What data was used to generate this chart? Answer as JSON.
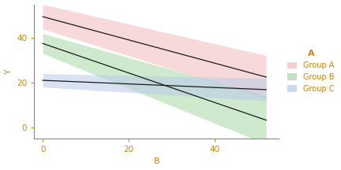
{
  "title": "",
  "xlabel": "B",
  "ylabel": "Y",
  "legend_title": "A",
  "legend_labels": [
    "Group A",
    "Group B",
    "Group C"
  ],
  "x_range": [
    -2,
    55
  ],
  "y_range": [
    -5,
    55
  ],
  "xticks": [
    0,
    20,
    40
  ],
  "yticks": [
    0,
    20,
    40
  ],
  "background_color": "#ffffff",
  "panel_background": "#ffffff",
  "axis_color": "#888888",
  "groups": {
    "Group A": {
      "line_color": "#1a1a1a",
      "fill_color": "#F4BBBB",
      "fill_alpha": 0.55,
      "intercept": 49.5,
      "slope": -0.52,
      "ci_upper_intercept": 55,
      "ci_upper_slope": -0.44,
      "ci_lower_intercept": 44,
      "ci_lower_slope": -0.6
    },
    "Group B": {
      "line_color": "#1a1a1a",
      "fill_color": "#A8D8A8",
      "fill_alpha": 0.55,
      "intercept": 37.5,
      "slope": -0.66,
      "ci_upper_intercept": 42,
      "ci_upper_slope": -0.54,
      "ci_lower_intercept": 33,
      "ci_lower_slope": -0.78
    },
    "Group C": {
      "line_color": "#1a1a1a",
      "fill_color": "#B8CBE8",
      "fill_alpha": 0.55,
      "intercept": 21,
      "slope": -0.08,
      "ci_upper_intercept": 24,
      "ci_upper_slope": -0.04,
      "ci_lower_intercept": 18,
      "ci_lower_slope": -0.12
    }
  },
  "legend_colors": [
    "#F4BBBB",
    "#A8D8A8",
    "#B8CBE8"
  ],
  "text_color": "#D4820A",
  "title_color": "#D4820A",
  "figsize": [
    4.32,
    2.16
  ],
  "dpi": 100
}
